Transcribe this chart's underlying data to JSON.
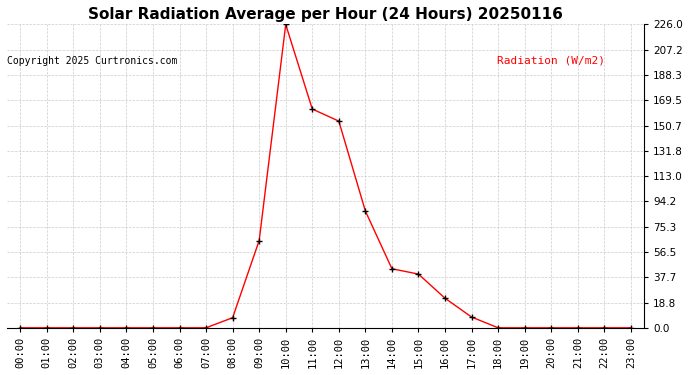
{
  "title": "Solar Radiation Average per Hour (24 Hours) 20250116",
  "copyright": "Copyright 2025 Curtronics.com",
  "ylabel_text": "Radiation (W/m2)",
  "hours": [
    0,
    1,
    2,
    3,
    4,
    5,
    6,
    7,
    8,
    9,
    10,
    11,
    12,
    13,
    14,
    15,
    16,
    17,
    18,
    19,
    20,
    21,
    22,
    23
  ],
  "values": [
    0.0,
    0.0,
    0.0,
    0.0,
    0.0,
    0.0,
    0.0,
    0.0,
    7.5,
    65.0,
    226.0,
    163.0,
    154.0,
    87.0,
    44.0,
    40.0,
    22.0,
    8.0,
    0.0,
    0.0,
    0.0,
    0.0,
    0.0,
    0.0
  ],
  "line_color": "#ff0000",
  "marker_color": "#000000",
  "title_color": "#000000",
  "ylabel_color": "#ff0000",
  "copyright_color": "#000000",
  "background_color": "#ffffff",
  "grid_color": "#cccccc",
  "ylim_min": 0.0,
  "ylim_max": 226.0,
  "yticks": [
    0.0,
    18.8,
    37.7,
    56.5,
    75.3,
    94.2,
    113.0,
    131.8,
    150.7,
    169.5,
    188.3,
    207.2,
    226.0
  ],
  "title_fontsize": 11,
  "copyright_fontsize": 7,
  "ylabel_fontsize": 8,
  "tick_fontsize": 7.5
}
